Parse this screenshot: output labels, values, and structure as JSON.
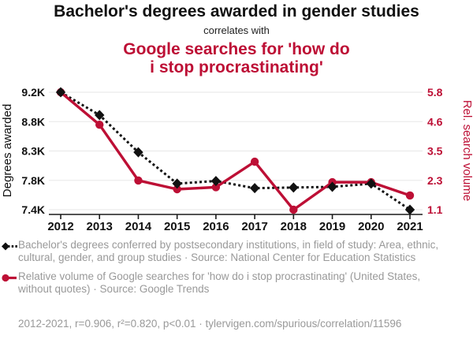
{
  "header": {
    "title": "Bachelor's degrees awarded in gender studies",
    "subtitle": "correlates with",
    "red_title_lines": [
      "Google searches for 'how do",
      "i stop procrastinating'"
    ]
  },
  "chart_data": {
    "type": "line",
    "x": [
      2012,
      2013,
      2014,
      2015,
      2016,
      2017,
      2018,
      2019,
      2020,
      2021
    ],
    "series": [
      {
        "name": "Bachelor's degrees awarded in gender studies",
        "axis": "left",
        "color": "#111111",
        "style": "dotted",
        "marker": "diamond",
        "values": [
          9.2,
          8.85,
          8.28,
          7.8,
          7.84,
          7.73,
          7.74,
          7.75,
          7.8,
          7.4
        ]
      },
      {
        "name": "Google searches for 'how do i stop procrastinating'",
        "axis": "right",
        "color": "#bd0f35",
        "style": "solid",
        "marker": "circle",
        "values": [
          5.8,
          4.5,
          2.27,
          1.92,
          2.0,
          3.02,
          1.1,
          2.2,
          2.2,
          1.67
        ]
      }
    ],
    "left_axis": {
      "label": "Degrees awarded",
      "ticks": [
        "9.2K",
        "8.8K",
        "8.3K",
        "7.8K",
        "7.4K"
      ],
      "range": [
        7.4,
        9.2
      ],
      "unit": "K degrees"
    },
    "right_axis": {
      "label": "Rel. search volume",
      "ticks": [
        "5.8",
        "4.6",
        "3.5",
        "2.3",
        "1.1"
      ],
      "range": [
        1.1,
        5.8
      ]
    },
    "grid": true,
    "legend_position": "bottom"
  },
  "legend": {
    "items": [
      {
        "marker": "black-diamond-dotted-line",
        "text": "Bachelor's degrees conferred by postsecondary institutions, in field of study: Area, ethnic, cultural, gender, and group studies · Source: National Center for Education Statistics"
      },
      {
        "marker": "red-circle-solid-line",
        "text": "Relative volume of Google searches for 'how do i stop procrastinating' (United States, without quotes) · Source: Google Trends"
      }
    ]
  },
  "footer": {
    "text": "2012-2021, r=0.906, r²=0.820, p<0.01 · tylervigen.com/spurious/correlation/11596"
  },
  "colors": {
    "accent_red": "#bd0f35",
    "title_black": "#111111",
    "text_gray": "#999999",
    "grid": "#ebebeb",
    "axis": "#1a1a1a"
  }
}
